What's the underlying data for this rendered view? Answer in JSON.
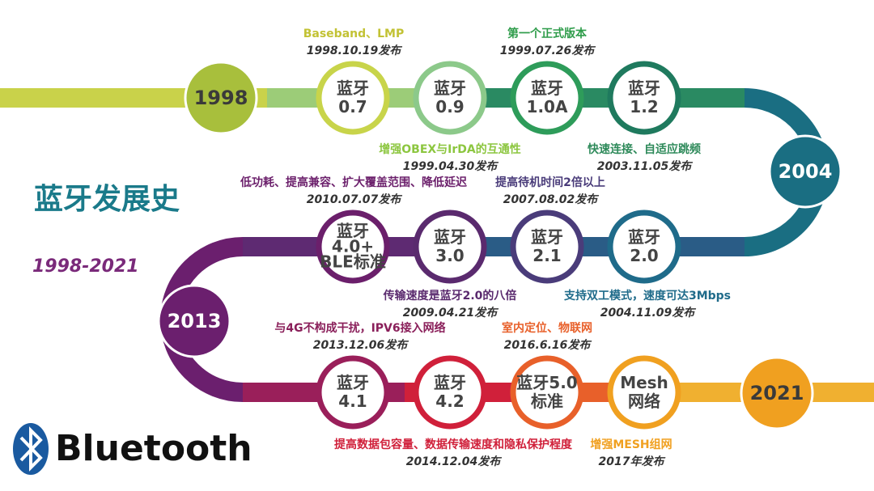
{
  "title": "蓝牙发展史",
  "subtitle": "1998-2021",
  "logo": "Bluetooth",
  "years": [
    "1998",
    "2004",
    "2013",
    "2021"
  ],
  "nodes": [
    {
      "lines": [
        "蓝牙",
        "0.7"
      ]
    },
    {
      "lines": [
        "蓝牙",
        "0.9"
      ]
    },
    {
      "lines": [
        "蓝牙",
        "1.0A"
      ]
    },
    {
      "lines": [
        "蓝牙",
        "1.2"
      ]
    },
    {
      "lines": [
        "蓝牙",
        "2.0"
      ]
    },
    {
      "lines": [
        "蓝牙",
        "2.1"
      ]
    },
    {
      "lines": [
        "蓝牙",
        "3.0"
      ]
    },
    {
      "lines": [
        "蓝牙",
        "4.0+",
        "BLE标准"
      ]
    },
    {
      "lines": [
        "蓝牙",
        "4.1"
      ]
    },
    {
      "lines": [
        "蓝牙",
        "4.2"
      ]
    },
    {
      "lines": [
        "蓝牙5.0",
        "标准"
      ]
    },
    {
      "lines": [
        "Mesh",
        "网络"
      ]
    }
  ],
  "annotations": [
    {
      "feature": "Baseband、LMP",
      "date": "1998.10.19发布"
    },
    {
      "feature": "第一个正式版本",
      "date": "1999.07.26发布"
    },
    {
      "feature": "增强OBEX与IrDA的互通性",
      "date": "1999.04.30发布"
    },
    {
      "feature": "快速连接、自适应跳频",
      "date": "2003.11.05发布"
    },
    {
      "feature": "低功耗、提高兼容、扩大覆盖范围、降低延迟",
      "date": "2010.07.07发布"
    },
    {
      "feature": "提高待机时间2倍以上",
      "date": "2007.08.02发布"
    },
    {
      "feature": "传输速度是蓝牙2.0的八倍",
      "date": "2009.04.21发布"
    },
    {
      "feature": "支持双工模式，速度可达3Mbps",
      "date": "2004.11.09发布"
    },
    {
      "feature": "与4G不构成干扰，IPV6接入网络",
      "date": "2013.12.06发布"
    },
    {
      "feature": "室内定位、物联网",
      "date": "2016.6.16发布"
    },
    {
      "feature": "提高数据包容量、数据传输速度和隐私保护程度",
      "date": "2014.12.04发布"
    },
    {
      "feature": "增强MESH组网",
      "date": "2017年发布"
    }
  ]
}
